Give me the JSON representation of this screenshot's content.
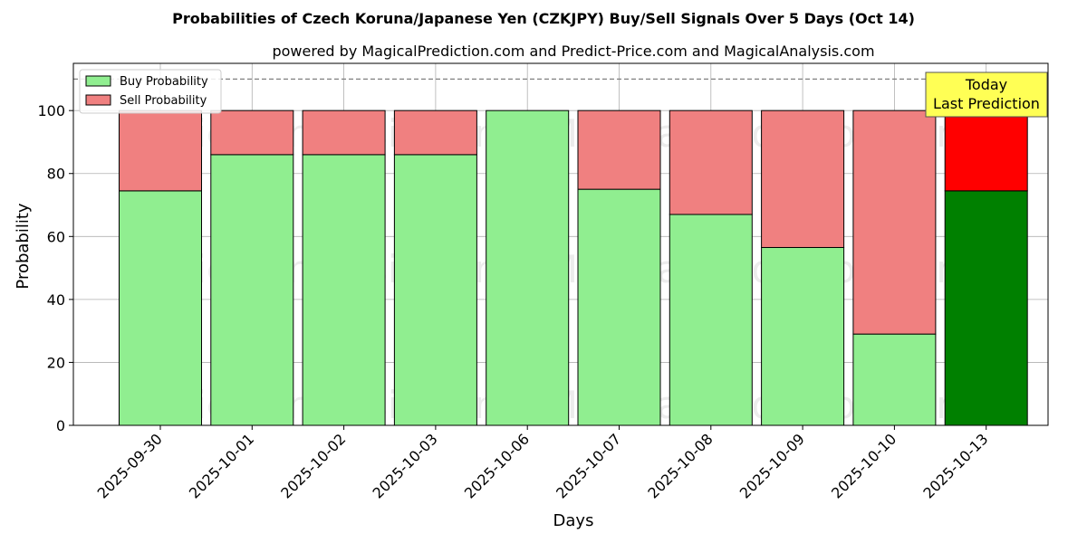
{
  "chart_data": {
    "type": "bar",
    "stacked": true,
    "title": "Probabilities of Czech Koruna/Japanese Yen (CZKJPY) Buy/Sell Signals Over 5 Days (Oct 14)",
    "subtitle": "powered by MagicalPrediction.com and Predict-Price.com and MagicalAnalysis.com",
    "xlabel": "Days",
    "ylabel": "Probability",
    "ylim": [
      0,
      115
    ],
    "yticks": [
      0,
      20,
      40,
      60,
      80,
      100
    ],
    "grid": true,
    "legend_position": "top-left",
    "reference_line": 110,
    "categories": [
      "2025-09-30",
      "2025-10-01",
      "2025-10-02",
      "2025-10-03",
      "2025-10-06",
      "2025-10-07",
      "2025-10-08",
      "2025-10-09",
      "2025-10-10",
      "2025-10-13"
    ],
    "series": [
      {
        "name": "Buy Probability",
        "values": [
          74.5,
          86,
          86,
          86,
          100,
          75,
          67,
          56.5,
          29,
          74.5
        ]
      },
      {
        "name": "Sell Probability",
        "values": [
          25.5,
          14,
          14,
          14,
          0,
          25,
          33,
          43.5,
          71,
          25.5
        ]
      }
    ],
    "colors": {
      "buy": "#90ee90",
      "sell": "#f08080",
      "buy_highlight": "#008000",
      "sell_highlight": "#ff0000",
      "annotation_bg": "#ffff55"
    },
    "highlight_index": 9,
    "annotation": {
      "line1": "Today",
      "line2": "Last Prediction"
    },
    "watermarks": [
      "MagicalAnalysis.com",
      "MagicalPrediction.com"
    ]
  }
}
